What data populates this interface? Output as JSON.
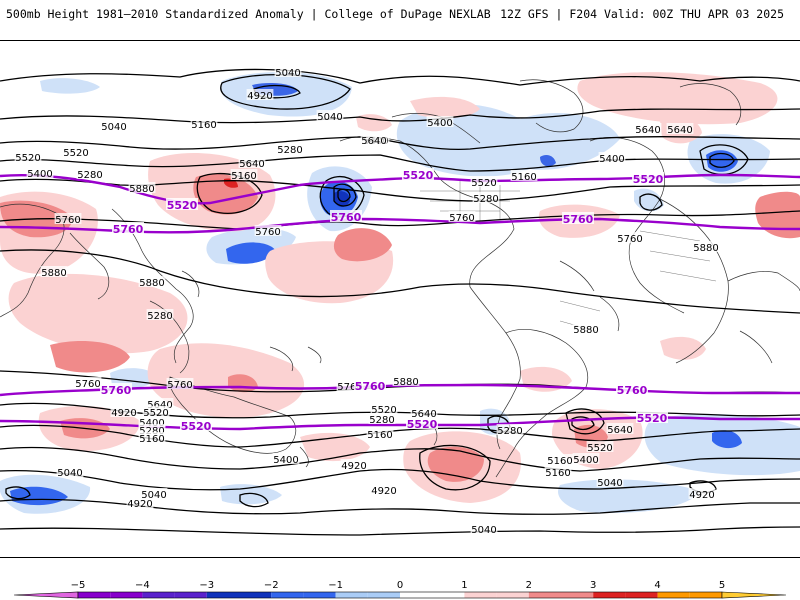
{
  "header": {
    "title": "500mb Height 1981–2010 Standardized Anomaly | College of DuPage NEXLAB",
    "valid": "12Z GFS | F204 Valid: 00Z THU APR 03 2025"
  },
  "colors": {
    "ref_contour": "#9900cc",
    "contour": "#000000",
    "coast": "#333333"
  },
  "colorbar": {
    "ticks": [
      "−5",
      "−4",
      "−3",
      "−2",
      "−1",
      "0",
      "1",
      "2",
      "3",
      "4",
      "5"
    ],
    "colors": [
      "#e066e0",
      "#8800cc",
      "#1133bb",
      "#3366ee",
      "#aaccf5",
      "#e8f0fb",
      "#ffffff",
      "#ffffff",
      "#fbd2d2",
      "#f08a8a",
      "#dd2222",
      "#990000",
      "#ff9900",
      "#ffcc33"
    ]
  },
  "height_labels": [
    "5040",
    "4920",
    "5040",
    "5040",
    "5160",
    "5400",
    "5280",
    "5520",
    "5640",
    "5520",
    "5400",
    "5280",
    "5160",
    "5760",
    "5760",
    "5880",
    "5880",
    "5880",
    "5280",
    "5160",
    "5400",
    "5640",
    "5520",
    "5280",
    "5400",
    "5640",
    "5880",
    "5760",
    "5760",
    "5880",
    "5880",
    "5760",
    "5760",
    "5640",
    "5520",
    "5400",
    "5280",
    "5160",
    "5040",
    "4920",
    "5040",
    "4920",
    "5520",
    "5640",
    "5280",
    "5160",
    "5400",
    "4920",
    "5040",
    "4920",
    "5520",
    "5640",
    "5400",
    "5160",
    "5040",
    "4920",
    "5160",
    "5280",
    "5640",
    "5760"
  ],
  "reference_labels": [
    "5520",
    "5520",
    "5520",
    "5760",
    "5760",
    "5760",
    "5760",
    "5760",
    "5760",
    "5520",
    "5520",
    "5520"
  ]
}
